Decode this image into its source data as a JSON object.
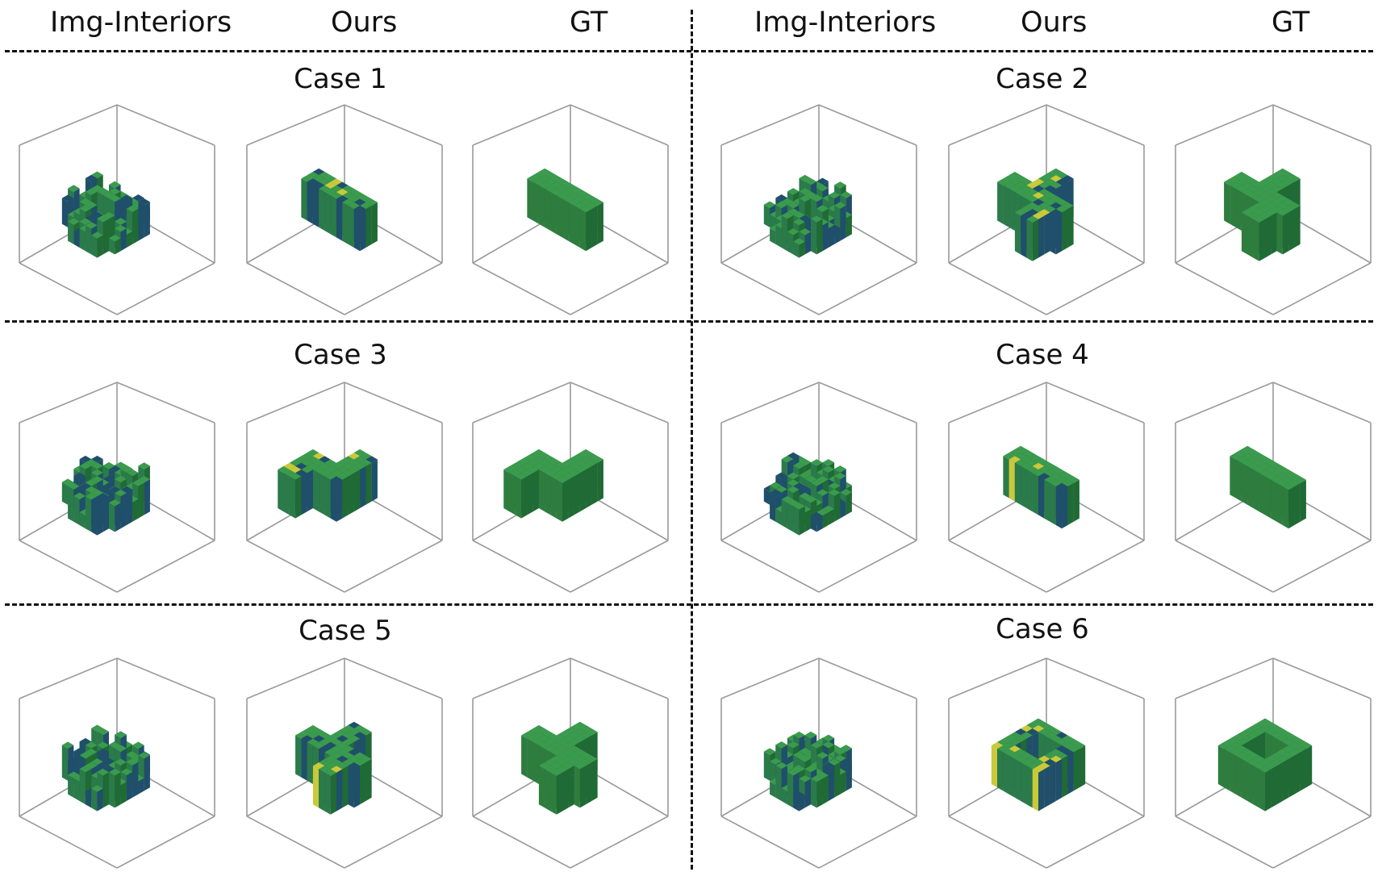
{
  "headers": {
    "left": [
      "Img-Interiors",
      "Ours",
      "GT"
    ],
    "right": [
      "Img-Interiors",
      "Ours",
      "GT"
    ]
  },
  "cases": [
    {
      "title": "Case 1",
      "shapes": [
        "blob",
        "bar",
        "bar"
      ],
      "styles": [
        "noisy",
        "noisy",
        "solid"
      ]
    },
    {
      "title": "Case 2",
      "shapes": [
        "blob",
        "tee",
        "tee"
      ],
      "styles": [
        "noisy",
        "noisy",
        "solid"
      ]
    },
    {
      "title": "Case 3",
      "shapes": [
        "blob",
        "hook",
        "hook"
      ],
      "styles": [
        "noisy",
        "noisy",
        "solid"
      ]
    },
    {
      "title": "Case 4",
      "shapes": [
        "blob",
        "bar",
        "bar"
      ],
      "styles": [
        "noisy",
        "noisy",
        "solid"
      ]
    },
    {
      "title": "Case 5",
      "shapes": [
        "blob",
        "tee",
        "tee"
      ],
      "styles": [
        "noisy",
        "noisy",
        "solid"
      ]
    },
    {
      "title": "Case 6",
      "shapes": [
        "blob",
        "ring",
        "ring"
      ],
      "styles": [
        "noisy",
        "noisy",
        "solid"
      ]
    }
  ],
  "colors": {
    "solid": "#2e7d3f",
    "solid_top": "#3a9a4d",
    "solid_side": "#1f6a35",
    "noisy_base": "#2a7a4a",
    "noisy_dark": "#1f4f6a",
    "noisy_yellow": "#c9c93a",
    "box_line": "#9a9a9a"
  }
}
